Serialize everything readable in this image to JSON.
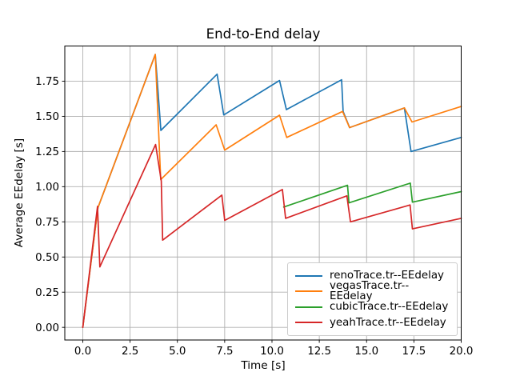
{
  "figure": {
    "title": "End-to-End delay",
    "xlabel": "Time [s]",
    "ylabel": "Average EEdelay [s]"
  },
  "chart_data": {
    "type": "line",
    "title": "End-to-End delay",
    "xlabel": "Time [s]",
    "ylabel": "Average EEdelay [s]",
    "xlim": [
      -0.95,
      20.0
    ],
    "ylim": [
      -0.09,
      2.0
    ],
    "xticks": [
      0.0,
      2.5,
      5.0,
      7.5,
      10.0,
      12.5,
      15.0,
      17.5,
      20.0
    ],
    "xtick_labels": [
      "0.0",
      "2.5",
      "5.0",
      "7.5",
      "10.0",
      "12.5",
      "15.0",
      "17.5",
      "20.0"
    ],
    "yticks": [
      0.0,
      0.25,
      0.5,
      0.75,
      1.0,
      1.25,
      1.5,
      1.75
    ],
    "ytick_labels": [
      "0.00",
      "0.25",
      "0.50",
      "0.75",
      "1.00",
      "1.25",
      "1.50",
      "1.75"
    ],
    "grid": true,
    "grid_color": "#b0b0b0",
    "legend_position": "lower right",
    "series": [
      {
        "name": "renoTrace.tr--EEdelay",
        "color": "#1f77b4",
        "points": [
          [
            0,
            0
          ],
          [
            0.8,
            0.85
          ],
          [
            3.83,
            1.94
          ],
          [
            4.13,
            1.4
          ],
          [
            7.1,
            1.8
          ],
          [
            7.45,
            1.51
          ],
          [
            10.4,
            1.755
          ],
          [
            10.76,
            1.548
          ],
          [
            13.68,
            1.76
          ],
          [
            13.76,
            1.535
          ],
          [
            14.1,
            1.42
          ],
          [
            17.0,
            1.56
          ],
          [
            17.35,
            1.25
          ],
          [
            20,
            1.35
          ]
        ]
      },
      {
        "name": "vegasTrace.tr--EEdelay",
        "color": "#ff7f0e",
        "points": [
          [
            0,
            0
          ],
          [
            0.8,
            0.85
          ],
          [
            3.83,
            1.94
          ],
          [
            4.12,
            1.05
          ],
          [
            7.05,
            1.44
          ],
          [
            7.5,
            1.26
          ],
          [
            10.4,
            1.508
          ],
          [
            10.78,
            1.35
          ],
          [
            13.73,
            1.535
          ],
          [
            14.1,
            1.42
          ],
          [
            17.0,
            1.56
          ],
          [
            17.4,
            1.46
          ],
          [
            20,
            1.57
          ]
        ]
      },
      {
        "name": "cubicTrace.tr--EEdelay",
        "color": "#2ca02c",
        "points": [
          [
            10.62,
            0.855
          ],
          [
            13.99,
            1.01
          ],
          [
            14.07,
            0.885
          ],
          [
            17.31,
            1.025
          ],
          [
            17.42,
            0.89
          ],
          [
            20,
            0.965
          ]
        ]
      },
      {
        "name": "yeahTrace.tr--EEdelay",
        "color": "#d62728",
        "points": [
          [
            0,
            0
          ],
          [
            0.78,
            0.86
          ],
          [
            0.9,
            0.43
          ],
          [
            3.85,
            1.3
          ],
          [
            4.15,
            1.04
          ],
          [
            4.22,
            0.62
          ],
          [
            7.35,
            0.94
          ],
          [
            7.5,
            0.76
          ],
          [
            10.55,
            0.98
          ],
          [
            10.72,
            0.775
          ],
          [
            13.96,
            0.935
          ],
          [
            14.15,
            0.75
          ],
          [
            17.3,
            0.87
          ],
          [
            17.42,
            0.7
          ],
          [
            20,
            0.775
          ]
        ]
      }
    ]
  }
}
